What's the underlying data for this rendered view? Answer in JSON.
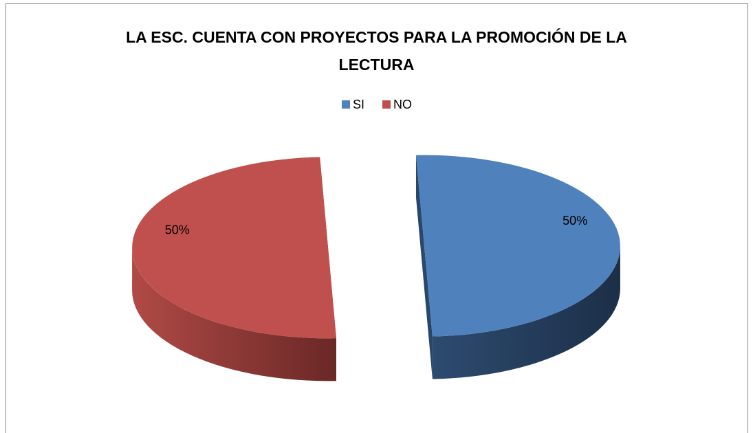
{
  "chart_data": {
    "type": "pie",
    "title": "LA ESC. CUENTA CON PROYECTOS PARA LA PROMOCIÓN DE LA LECTURA",
    "categories": [
      "SI",
      "NO"
    ],
    "values": [
      50,
      50
    ],
    "value_labels": [
      "50%",
      "50%"
    ],
    "colors": [
      "#4f81bd",
      "#c0504d"
    ],
    "legend": "top",
    "three_d": true,
    "exploded": true
  }
}
